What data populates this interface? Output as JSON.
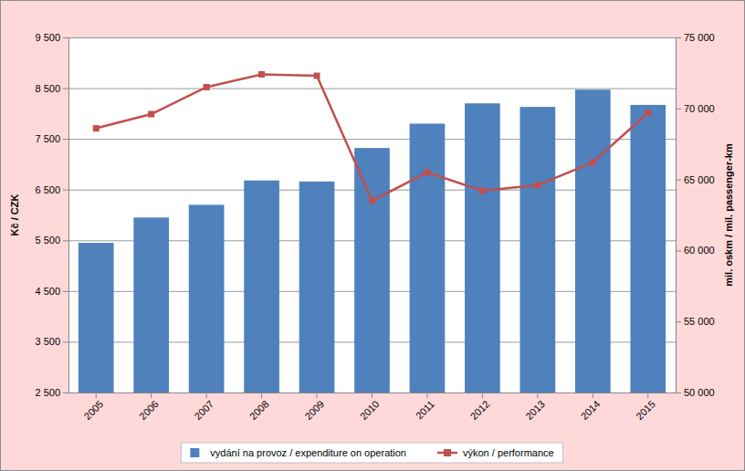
{
  "chart_data": {
    "type": "bar",
    "categories": [
      "2005",
      "2006",
      "2007",
      "2008",
      "2009",
      "2010",
      "2011",
      "2012",
      "2013",
      "2014",
      "2015"
    ],
    "series": [
      {
        "name": "vydání na provoz / expenditure on operation",
        "type": "bar",
        "color": "#4f81bd",
        "values": [
          5450,
          5950,
          6200,
          6680,
          6660,
          7320,
          7800,
          8200,
          8130,
          8470,
          8170
        ]
      },
      {
        "name": "výkon / performance",
        "type": "line",
        "color": "#c0504d",
        "marker": "square",
        "axis": "y2",
        "values": [
          68600,
          69600,
          71500,
          72400,
          72300,
          63500,
          65500,
          64200,
          64600,
          66200,
          69700
        ]
      }
    ],
    "y_label": "Kč / CZK",
    "y2_label": "mil. oskm / mil. passenger-km",
    "ylim": [
      2500,
      9500
    ],
    "yticks": [
      {
        "value": 2500,
        "label": "2 500"
      },
      {
        "value": 3500,
        "label": "3 500"
      },
      {
        "value": 4500,
        "label": "4 500"
      },
      {
        "value": 5500,
        "label": "5 500"
      },
      {
        "value": 6500,
        "label": "6 500"
      },
      {
        "value": 7500,
        "label": "7 500"
      },
      {
        "value": 8500,
        "label": "8 500"
      },
      {
        "value": 9500,
        "label": "9 500"
      }
    ],
    "y2lim": [
      50000,
      75000
    ],
    "y2ticks": [
      {
        "value": 50000,
        "label": "50 000"
      },
      {
        "value": 55000,
        "label": "55 000"
      },
      {
        "value": 60000,
        "label": "60 000"
      },
      {
        "value": 65000,
        "label": "65 000"
      },
      {
        "value": 70000,
        "label": "70 000"
      },
      {
        "value": 75000,
        "label": "75 000"
      }
    ],
    "grid": true,
    "legend": "bottom"
  }
}
